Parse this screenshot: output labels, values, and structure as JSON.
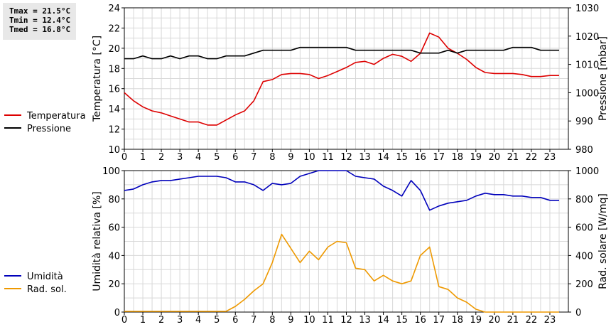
{
  "stats": {
    "tmax": "Tmax = 21.5°C",
    "tmin": "Tmin = 12.4°C",
    "tmed": "Tmed = 16.8°C"
  },
  "chart_data": [
    {
      "type": "line",
      "xlabel": "",
      "xlim": [
        0,
        24
      ],
      "x_ticks": [
        0,
        1,
        2,
        3,
        4,
        5,
        6,
        7,
        8,
        9,
        10,
        11,
        12,
        13,
        14,
        15,
        16,
        17,
        18,
        19,
        20,
        21,
        22,
        23
      ],
      "ylabel_left": "Temperatura [°C]",
      "ylim_left": [
        10,
        24
      ],
      "y_ticks_left": [
        10,
        12,
        14,
        16,
        18,
        20,
        22,
        24
      ],
      "ylabel_right": "Pressione [mbar]",
      "ylim_right": [
        980,
        1030
      ],
      "y_ticks_right": [
        980,
        990,
        1000,
        1010,
        1020,
        1030
      ],
      "grid": true,
      "legend_position": "left",
      "series": [
        {
          "name": "Temperatura",
          "axis": "left",
          "color": "#dd0000",
          "x": [
            0,
            0.5,
            1,
            1.5,
            2,
            2.5,
            3,
            3.5,
            4,
            4.5,
            5,
            5.5,
            6,
            6.5,
            7,
            7.5,
            8,
            8.5,
            9,
            9.5,
            10,
            10.5,
            11,
            11.5,
            12,
            12.5,
            13,
            13.5,
            14,
            14.5,
            15,
            15.5,
            16,
            16.5,
            17,
            17.5,
            18,
            18.5,
            19,
            19.5,
            20,
            20.5,
            21,
            21.5,
            22,
            22.5,
            23,
            23.5
          ],
          "values": [
            15.6,
            14.8,
            14.2,
            13.8,
            13.6,
            13.3,
            13.0,
            12.7,
            12.7,
            12.4,
            12.4,
            12.9,
            13.4,
            13.8,
            14.8,
            16.7,
            16.9,
            17.4,
            17.5,
            17.5,
            17.4,
            17.0,
            17.3,
            17.7,
            18.1,
            18.6,
            18.7,
            18.4,
            19.0,
            19.4,
            19.2,
            18.7,
            19.5,
            21.5,
            21.1,
            20.0,
            19.5,
            18.9,
            18.1,
            17.6,
            17.5,
            17.5,
            17.5,
            17.4,
            17.2,
            17.2,
            17.3,
            17.3
          ]
        },
        {
          "name": "Pressione",
          "axis": "right",
          "color": "#000000",
          "x": [
            0,
            0.5,
            1,
            1.5,
            2,
            2.5,
            3,
            3.5,
            4,
            4.5,
            5,
            5.5,
            6,
            6.5,
            7,
            7.5,
            8,
            8.5,
            9,
            9.5,
            10,
            10.5,
            11,
            11.5,
            12,
            12.5,
            13,
            13.5,
            14,
            14.5,
            15,
            15.5,
            16,
            16.5,
            17,
            17.5,
            18,
            18.5,
            19,
            19.5,
            20,
            20.5,
            21,
            21.5,
            22,
            22.5,
            23,
            23.5
          ],
          "values": [
            1012,
            1012,
            1013,
            1012,
            1012,
            1013,
            1012,
            1013,
            1013,
            1012,
            1012,
            1013,
            1013,
            1013,
            1014,
            1015,
            1015,
            1015,
            1015,
            1016,
            1016,
            1016,
            1016,
            1016,
            1016,
            1015,
            1015,
            1015,
            1015,
            1015,
            1015,
            1015,
            1014,
            1014,
            1014,
            1015,
            1014,
            1015,
            1015,
            1015,
            1015,
            1015,
            1016,
            1016,
            1016,
            1015,
            1015,
            1015
          ]
        }
      ]
    },
    {
      "type": "line",
      "xlabel": "",
      "xlim": [
        0,
        24
      ],
      "x_ticks": [
        0,
        1,
        2,
        3,
        4,
        5,
        6,
        7,
        8,
        9,
        10,
        11,
        12,
        13,
        14,
        15,
        16,
        17,
        18,
        19,
        20,
        21,
        22,
        23
      ],
      "ylabel_left": "Umidità relativa [%]",
      "ylim_left": [
        0,
        100
      ],
      "y_ticks_left": [
        0,
        20,
        40,
        60,
        80,
        100
      ],
      "ylabel_right": "Rad. solare [W/mq]",
      "ylim_right": [
        0,
        1000
      ],
      "y_ticks_right": [
        0,
        200,
        400,
        600,
        800,
        1000
      ],
      "grid": true,
      "legend_position": "left",
      "series": [
        {
          "name": "Umidità",
          "axis": "left",
          "color": "#0000bb",
          "x": [
            0,
            0.5,
            1,
            1.5,
            2,
            2.5,
            3,
            3.5,
            4,
            4.5,
            5,
            5.5,
            6,
            6.5,
            7,
            7.5,
            8,
            8.5,
            9,
            9.5,
            10,
            10.5,
            11,
            11.5,
            12,
            12.5,
            13,
            13.5,
            14,
            14.5,
            15,
            15.5,
            16,
            16.5,
            17,
            17.5,
            18,
            18.5,
            19,
            19.5,
            20,
            20.5,
            21,
            21.5,
            22,
            22.5,
            23,
            23.5
          ],
          "values": [
            86,
            87,
            90,
            92,
            93,
            93,
            94,
            95,
            96,
            96,
            96,
            95,
            92,
            92,
            90,
            86,
            91,
            90,
            91,
            96,
            98,
            100,
            100,
            100,
            100,
            96,
            95,
            94,
            89,
            86,
            82,
            93,
            86,
            72,
            75,
            77,
            78,
            79,
            82,
            84,
            83,
            83,
            82,
            82,
            81,
            81,
            79,
            79
          ]
        },
        {
          "name": "Rad. sol.",
          "axis": "right",
          "color": "#ee9900",
          "x": [
            0,
            0.5,
            1,
            1.5,
            2,
            2.5,
            3,
            3.5,
            4,
            4.5,
            5,
            5.5,
            6,
            6.5,
            7,
            7.5,
            8,
            8.5,
            9,
            9.5,
            10,
            10.5,
            11,
            11.5,
            12,
            12.5,
            13,
            13.5,
            14,
            14.5,
            15,
            15.5,
            16,
            16.5,
            17,
            17.5,
            18,
            18.5,
            19,
            19.5,
            20,
            20.5,
            21,
            21.5,
            22,
            22.5,
            23,
            23.5
          ],
          "values": [
            5,
            5,
            5,
            5,
            5,
            5,
            5,
            5,
            5,
            5,
            5,
            5,
            40,
            90,
            150,
            200,
            350,
            550,
            450,
            350,
            430,
            370,
            460,
            500,
            490,
            310,
            300,
            220,
            260,
            220,
            200,
            220,
            400,
            460,
            180,
            160,
            100,
            70,
            20,
            0,
            0,
            0,
            0,
            0,
            0,
            0,
            0,
            0
          ]
        }
      ]
    }
  ]
}
